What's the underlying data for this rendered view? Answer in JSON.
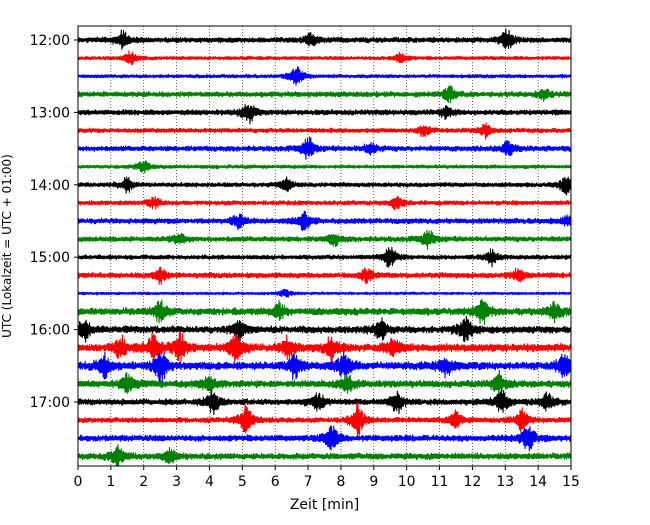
{
  "chart_data": {
    "type": "line",
    "subtype": "helicorder",
    "title": "",
    "xlabel": "Zeit  [min]",
    "ylabel": "UTC (Lokalzeit = UTC + 01:00)",
    "xlim": [
      0,
      15
    ],
    "x_ticks": [
      "0",
      "1",
      "2",
      "3",
      "4",
      "5",
      "6",
      "7",
      "8",
      "9",
      "10",
      "11",
      "12",
      "13",
      "14",
      "15"
    ],
    "y_ticks": [
      {
        "label": "12:00",
        "row": 0
      },
      {
        "label": "13:00",
        "row": 4
      },
      {
        "label": "14:00",
        "row": 8
      },
      {
        "label": "15:00",
        "row": 12
      },
      {
        "label": "16:00",
        "row": 16
      },
      {
        "label": "17:00",
        "row": 20
      }
    ],
    "grid": "vertical-dotted",
    "trace_colors": [
      "#000000",
      "#ff0000",
      "#0000ff",
      "#008000"
    ],
    "rows": [
      {
        "start": "12:00",
        "amplitude": 3,
        "events": [
          [
            1.35,
            7
          ],
          [
            7.1,
            5
          ],
          [
            13.05,
            9
          ]
        ]
      },
      {
        "start": "12:15",
        "amplitude": 2,
        "events": [
          [
            1.6,
            5
          ],
          [
            9.8,
            4
          ]
        ]
      },
      {
        "start": "12:30",
        "amplitude": 2,
        "events": [
          [
            6.65,
            8
          ]
        ]
      },
      {
        "start": "12:45",
        "amplitude": 3,
        "events": [
          [
            11.3,
            6
          ],
          [
            14.2,
            4
          ]
        ]
      },
      {
        "start": "13:00",
        "amplitude": 3,
        "events": [
          [
            5.2,
            9
          ],
          [
            11.2,
            5
          ]
        ]
      },
      {
        "start": "13:15",
        "amplitude": 2.5,
        "events": [
          [
            10.5,
            5
          ],
          [
            12.4,
            5
          ]
        ]
      },
      {
        "start": "13:30",
        "amplitude": 3,
        "events": [
          [
            7.0,
            9
          ],
          [
            8.9,
            5
          ],
          [
            13.1,
            6
          ]
        ]
      },
      {
        "start": "13:45",
        "amplitude": 2,
        "events": [
          [
            2.0,
            5
          ]
        ]
      },
      {
        "start": "14:00",
        "amplitude": 2.5,
        "events": [
          [
            1.5,
            6
          ],
          [
            6.35,
            5
          ],
          [
            14.85,
            8
          ]
        ]
      },
      {
        "start": "14:15",
        "amplitude": 2.5,
        "events": [
          [
            2.3,
            4
          ],
          [
            9.7,
            5
          ]
        ]
      },
      {
        "start": "14:30",
        "amplitude": 3,
        "events": [
          [
            4.9,
            6
          ],
          [
            6.9,
            7
          ],
          [
            14.9,
            5
          ]
        ]
      },
      {
        "start": "14:45",
        "amplitude": 3,
        "events": [
          [
            3.1,
            4
          ],
          [
            7.8,
            5
          ],
          [
            10.65,
            7
          ]
        ]
      },
      {
        "start": "15:00",
        "amplitude": 2.5,
        "events": [
          [
            9.5,
            9
          ],
          [
            12.6,
            6
          ]
        ]
      },
      {
        "start": "15:15",
        "amplitude": 3,
        "events": [
          [
            2.5,
            6
          ],
          [
            8.8,
            6
          ],
          [
            13.4,
            5
          ]
        ]
      },
      {
        "start": "15:30",
        "amplitude": 1.5,
        "events": [
          [
            6.3,
            3
          ]
        ]
      },
      {
        "start": "15:45",
        "amplitude": 4,
        "events": [
          [
            2.5,
            9
          ],
          [
            6.1,
            7
          ],
          [
            12.3,
            9
          ],
          [
            14.5,
            8
          ]
        ]
      },
      {
        "start": "16:00",
        "amplitude": 4,
        "events": [
          [
            0.2,
            9
          ],
          [
            4.9,
            9
          ],
          [
            9.2,
            8
          ],
          [
            11.8,
            10
          ]
        ]
      },
      {
        "start": "16:15",
        "amplitude": 4.5,
        "events": [
          [
            1.3,
            9
          ],
          [
            2.3,
            12
          ],
          [
            3.1,
            11
          ],
          [
            4.8,
            12
          ],
          [
            6.4,
            8
          ],
          [
            7.7,
            9
          ],
          [
            9.6,
            8
          ]
        ]
      },
      {
        "start": "16:30",
        "amplitude": 4.5,
        "events": [
          [
            0.8,
            9
          ],
          [
            2.5,
            13
          ],
          [
            6.6,
            10
          ],
          [
            8.1,
            10
          ],
          [
            11.2,
            8
          ],
          [
            14.8,
            9
          ]
        ]
      },
      {
        "start": "16:45",
        "amplitude": 4,
        "events": [
          [
            1.5,
            8
          ],
          [
            4.0,
            7
          ],
          [
            8.2,
            7
          ],
          [
            12.8,
            8
          ]
        ]
      },
      {
        "start": "17:00",
        "amplitude": 3.5,
        "events": [
          [
            4.1,
            10
          ],
          [
            7.3,
            7
          ],
          [
            9.7,
            9
          ],
          [
            12.9,
            10
          ],
          [
            14.3,
            7
          ]
        ]
      },
      {
        "start": "17:15",
        "amplitude": 3,
        "events": [
          [
            5.1,
            12
          ],
          [
            8.5,
            12
          ],
          [
            11.5,
            7
          ],
          [
            13.5,
            8
          ]
        ]
      },
      {
        "start": "17:30",
        "amplitude": 3.5,
        "events": [
          [
            7.7,
            11
          ],
          [
            13.7,
            12
          ]
        ]
      },
      {
        "start": "17:45",
        "amplitude": 3.5,
        "events": [
          [
            1.2,
            9
          ],
          [
            2.8,
            7
          ]
        ]
      }
    ]
  }
}
